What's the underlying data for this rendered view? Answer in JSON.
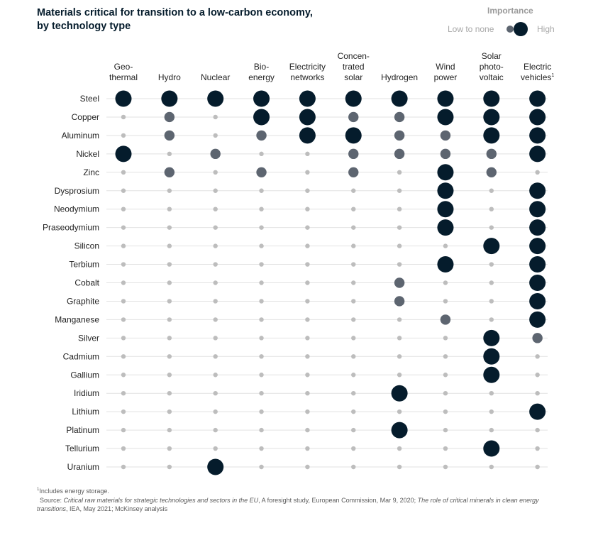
{
  "title": {
    "line1": "Materials critical for transition to a low-carbon economy,",
    "line2": "by technology type"
  },
  "legend": {
    "title": "Importance",
    "low": "Low to none",
    "high": "High"
  },
  "footnote": {
    "marker": "1",
    "text": "Includes energy storage."
  },
  "source": {
    "lead": "Source: ",
    "italic1": "Critical raw materials for strategic technologies and sectors in the EU",
    "text1": ", A foresight study, European Commission, Mar 9, 2020; ",
    "italic2": "The role of critical minerals in clean energy transitions",
    "text2": ", IEA, May 2021; McKinsey analysis"
  },
  "colors": {
    "high": "#051c2c",
    "medium": "#5d6570",
    "low": "#bdbdbd",
    "gridline": "#e2e2e2"
  },
  "chart_data": {
    "type": "heatmap",
    "title": "Materials critical for transition to a low-carbon economy, by technology type",
    "value_scale": {
      "0": "Low to none",
      "1": "Medium",
      "2": "High"
    },
    "columns": [
      {
        "key": "geothermal",
        "label_lines": [
          "Geo-",
          "thermal"
        ],
        "footnote": ""
      },
      {
        "key": "hydro",
        "label_lines": [
          "Hydro"
        ],
        "footnote": ""
      },
      {
        "key": "nuclear",
        "label_lines": [
          "Nuclear"
        ],
        "footnote": ""
      },
      {
        "key": "bioenergy",
        "label_lines": [
          "Bio-",
          "energy"
        ],
        "footnote": ""
      },
      {
        "key": "electricity_networks",
        "label_lines": [
          "Electricity",
          "networks"
        ],
        "footnote": ""
      },
      {
        "key": "concentrated_solar",
        "label_lines": [
          "Concen-",
          "trated",
          "solar"
        ],
        "footnote": ""
      },
      {
        "key": "hydrogen",
        "label_lines": [
          "Hydrogen"
        ],
        "footnote": ""
      },
      {
        "key": "wind_power",
        "label_lines": [
          "Wind",
          "power"
        ],
        "footnote": ""
      },
      {
        "key": "solar_photovoltaic",
        "label_lines": [
          "Solar",
          "photo-",
          "voltaic"
        ],
        "footnote": ""
      },
      {
        "key": "electric_vehicles",
        "label_lines": [
          "Electric",
          "vehicles"
        ],
        "footnote": "1"
      }
    ],
    "rows": [
      {
        "material": "Steel",
        "values": [
          2,
          2,
          2,
          2,
          2,
          2,
          2,
          2,
          2,
          2
        ]
      },
      {
        "material": "Copper",
        "values": [
          0,
          1,
          0,
          2,
          2,
          1,
          1,
          2,
          2,
          2
        ]
      },
      {
        "material": "Aluminum",
        "values": [
          0,
          1,
          0,
          1,
          2,
          2,
          1,
          1,
          2,
          2
        ]
      },
      {
        "material": "Nickel",
        "values": [
          2,
          0,
          1,
          0,
          0,
          1,
          1,
          1,
          1,
          2
        ]
      },
      {
        "material": "Zinc",
        "values": [
          0,
          1,
          0,
          1,
          0,
          1,
          0,
          2,
          1,
          0
        ]
      },
      {
        "material": "Dysprosium",
        "values": [
          0,
          0,
          0,
          0,
          0,
          0,
          0,
          2,
          0,
          2
        ]
      },
      {
        "material": "Neodymium",
        "values": [
          0,
          0,
          0,
          0,
          0,
          0,
          0,
          2,
          0,
          2
        ]
      },
      {
        "material": "Praseodymium",
        "values": [
          0,
          0,
          0,
          0,
          0,
          0,
          0,
          2,
          0,
          2
        ]
      },
      {
        "material": "Silicon",
        "values": [
          0,
          0,
          0,
          0,
          0,
          0,
          0,
          0,
          2,
          2
        ]
      },
      {
        "material": "Terbium",
        "values": [
          0,
          0,
          0,
          0,
          0,
          0,
          0,
          2,
          0,
          2
        ]
      },
      {
        "material": "Cobalt",
        "values": [
          0,
          0,
          0,
          0,
          0,
          0,
          1,
          0,
          0,
          2
        ]
      },
      {
        "material": "Graphite",
        "values": [
          0,
          0,
          0,
          0,
          0,
          0,
          1,
          0,
          0,
          2
        ]
      },
      {
        "material": "Manganese",
        "values": [
          0,
          0,
          0,
          0,
          0,
          0,
          0,
          1,
          0,
          2
        ]
      },
      {
        "material": "Silver",
        "values": [
          0,
          0,
          0,
          0,
          0,
          0,
          0,
          0,
          2,
          1
        ]
      },
      {
        "material": "Cadmium",
        "values": [
          0,
          0,
          0,
          0,
          0,
          0,
          0,
          0,
          2,
          0
        ]
      },
      {
        "material": "Gallium",
        "values": [
          0,
          0,
          0,
          0,
          0,
          0,
          0,
          0,
          2,
          0
        ]
      },
      {
        "material": "Iridium",
        "values": [
          0,
          0,
          0,
          0,
          0,
          0,
          2,
          0,
          0,
          0
        ]
      },
      {
        "material": "Lithium",
        "values": [
          0,
          0,
          0,
          0,
          0,
          0,
          0,
          0,
          0,
          2
        ]
      },
      {
        "material": "Platinum",
        "values": [
          0,
          0,
          0,
          0,
          0,
          0,
          2,
          0,
          0,
          0
        ]
      },
      {
        "material": "Tellurium",
        "values": [
          0,
          0,
          0,
          0,
          0,
          0,
          0,
          0,
          2,
          0
        ]
      },
      {
        "material": "Uranium",
        "values": [
          0,
          0,
          2,
          0,
          0,
          0,
          0,
          0,
          0,
          0
        ]
      }
    ]
  }
}
